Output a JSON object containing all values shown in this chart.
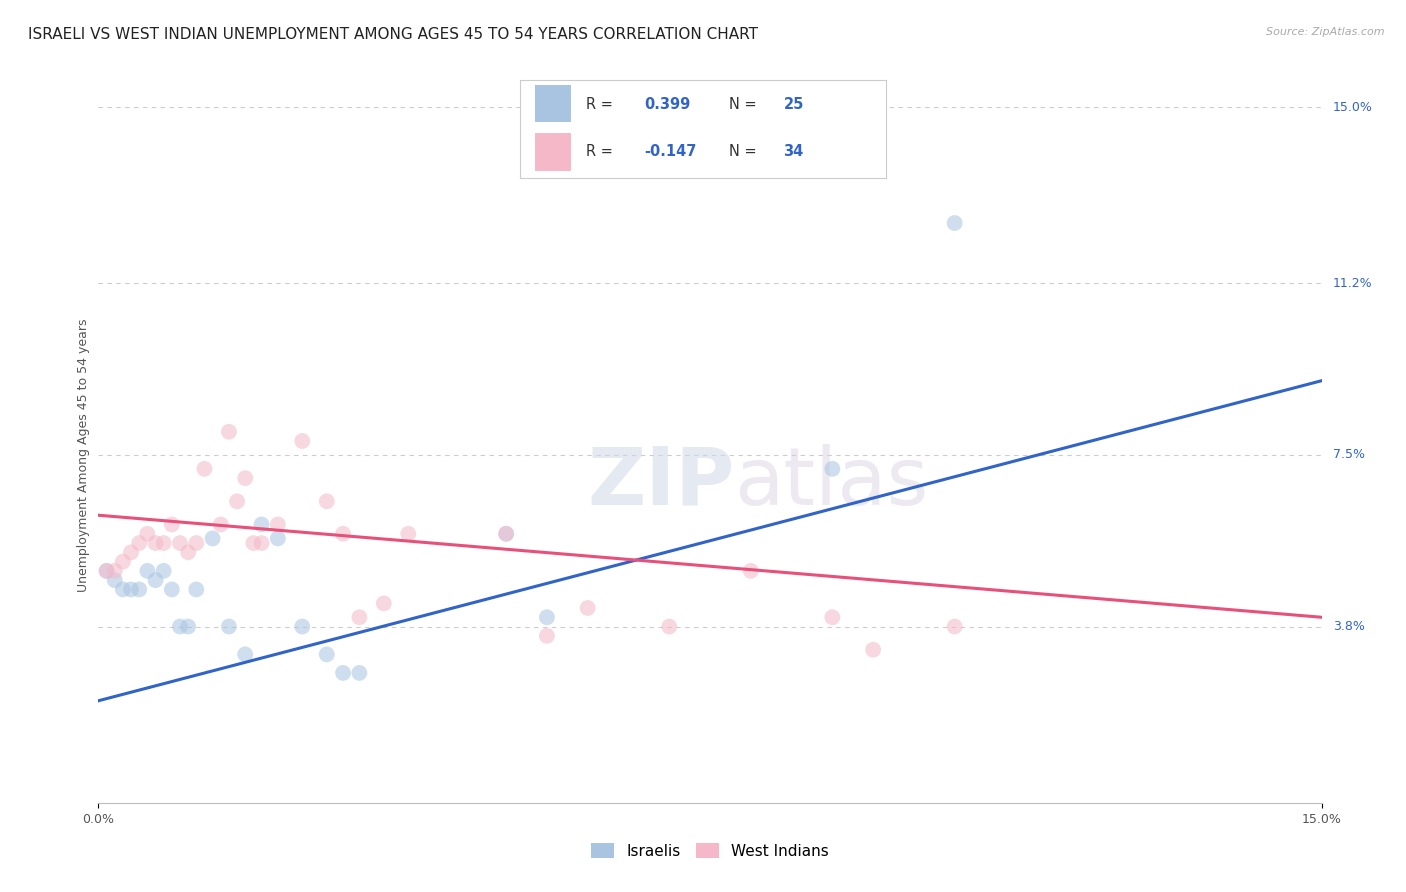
{
  "title": "ISRAELI VS WEST INDIAN UNEMPLOYMENT AMONG AGES 45 TO 54 YEARS CORRELATION CHART",
  "source": "Source: ZipAtlas.com",
  "ylabel": "Unemployment Among Ages 45 to 54 years",
  "xlim": [
    0.0,
    0.15
  ],
  "ylim": [
    0.0,
    0.15
  ],
  "ytick_labels_right": [
    "15.0%",
    "11.2%",
    "7.5%",
    "3.8%"
  ],
  "ytick_positions_right": [
    0.15,
    0.112,
    0.075,
    0.038
  ],
  "watermark_zip": "ZIP",
  "watermark_atlas": "atlas",
  "israeli_color": "#a8c4e0",
  "west_indian_color": "#f4b8c8",
  "israeli_line_color": "#3264c8",
  "west_indian_line_color": "#e8507a",
  "israeli_x": [
    0.001,
    0.002,
    0.003,
    0.004,
    0.005,
    0.006,
    0.007,
    0.008,
    0.009,
    0.01,
    0.011,
    0.012,
    0.014,
    0.016,
    0.018,
    0.02,
    0.022,
    0.025,
    0.028,
    0.03,
    0.032,
    0.05,
    0.055,
    0.09,
    0.105
  ],
  "israeli_y": [
    0.05,
    0.048,
    0.046,
    0.046,
    0.046,
    0.05,
    0.048,
    0.05,
    0.046,
    0.038,
    0.038,
    0.046,
    0.057,
    0.038,
    0.032,
    0.06,
    0.057,
    0.038,
    0.032,
    0.028,
    0.028,
    0.058,
    0.04,
    0.072,
    0.125
  ],
  "west_indian_x": [
    0.001,
    0.002,
    0.003,
    0.004,
    0.005,
    0.006,
    0.007,
    0.008,
    0.009,
    0.01,
    0.011,
    0.012,
    0.013,
    0.015,
    0.016,
    0.017,
    0.018,
    0.019,
    0.02,
    0.022,
    0.025,
    0.028,
    0.03,
    0.032,
    0.035,
    0.038,
    0.05,
    0.055,
    0.06,
    0.07,
    0.08,
    0.09,
    0.095,
    0.105
  ],
  "west_indian_y": [
    0.05,
    0.05,
    0.052,
    0.054,
    0.056,
    0.058,
    0.056,
    0.056,
    0.06,
    0.056,
    0.054,
    0.056,
    0.072,
    0.06,
    0.08,
    0.065,
    0.07,
    0.056,
    0.056,
    0.06,
    0.078,
    0.065,
    0.058,
    0.04,
    0.043,
    0.058,
    0.058,
    0.036,
    0.042,
    0.038,
    0.05,
    0.04,
    0.033,
    0.038
  ],
  "scatter_size": 130,
  "scatter_alpha": 0.55,
  "background_color": "#ffffff",
  "grid_color": "#cccccc",
  "title_fontsize": 11,
  "axis_label_fontsize": 9,
  "tick_fontsize": 9,
  "israeli_trend_start_y": 0.022,
  "israeli_trend_end_y": 0.091,
  "west_indian_trend_start_y": 0.062,
  "west_indian_trend_end_y": 0.04
}
